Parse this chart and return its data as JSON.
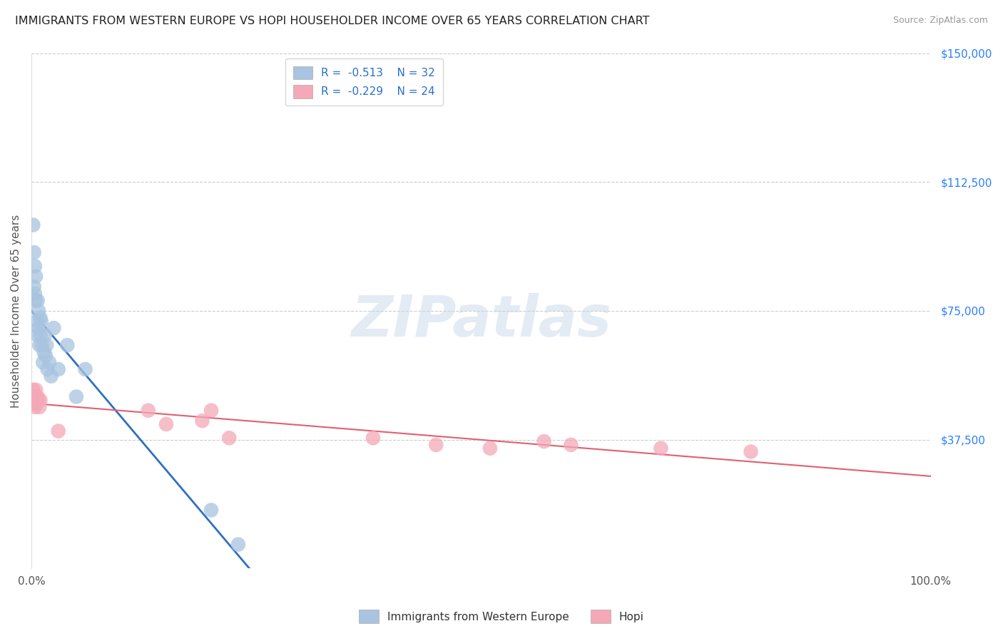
{
  "title": "IMMIGRANTS FROM WESTERN EUROPE VS HOPI HOUSEHOLDER INCOME OVER 65 YEARS CORRELATION CHART",
  "source": "Source: ZipAtlas.com",
  "ylabel": "Householder Income Over 65 years",
  "legend_label1": "Immigrants from Western Europe",
  "legend_label2": "Hopi",
  "R1": -0.513,
  "N1": 32,
  "R2": -0.229,
  "N2": 24,
  "color1": "#a8c4e0",
  "color2": "#f4a8b8",
  "line_color1": "#3070c0",
  "line_color2": "#e06070",
  "ylim": [
    0,
    150000
  ],
  "xlim": [
    0,
    1.0
  ],
  "yticks": [
    0,
    37500,
    75000,
    112500,
    150000
  ],
  "watermark": "ZIPatlas",
  "blue_x": [
    0.002,
    0.003,
    0.003,
    0.004,
    0.004,
    0.005,
    0.005,
    0.006,
    0.006,
    0.007,
    0.008,
    0.008,
    0.009,
    0.01,
    0.01,
    0.011,
    0.012,
    0.013,
    0.014,
    0.015,
    0.016,
    0.017,
    0.018,
    0.02,
    0.022,
    0.025,
    0.03,
    0.04,
    0.05,
    0.06,
    0.2,
    0.23
  ],
  "blue_y": [
    100000,
    82000,
    92000,
    88000,
    80000,
    78000,
    85000,
    72000,
    68000,
    78000,
    75000,
    70000,
    65000,
    73000,
    68000,
    72000,
    65000,
    60000,
    63000,
    68000,
    62000,
    65000,
    58000,
    60000,
    56000,
    70000,
    58000,
    65000,
    50000,
    58000,
    17000,
    7000
  ],
  "pink_x": [
    0.002,
    0.003,
    0.003,
    0.004,
    0.004,
    0.005,
    0.006,
    0.007,
    0.008,
    0.009,
    0.01,
    0.03,
    0.13,
    0.15,
    0.19,
    0.2,
    0.22,
    0.38,
    0.45,
    0.51,
    0.57,
    0.6,
    0.7,
    0.8
  ],
  "pink_y": [
    52000,
    50000,
    48000,
    47000,
    50000,
    52000,
    48000,
    50000,
    49000,
    47000,
    49000,
    40000,
    46000,
    42000,
    43000,
    46000,
    38000,
    38000,
    36000,
    35000,
    37000,
    36000,
    35000,
    34000
  ]
}
